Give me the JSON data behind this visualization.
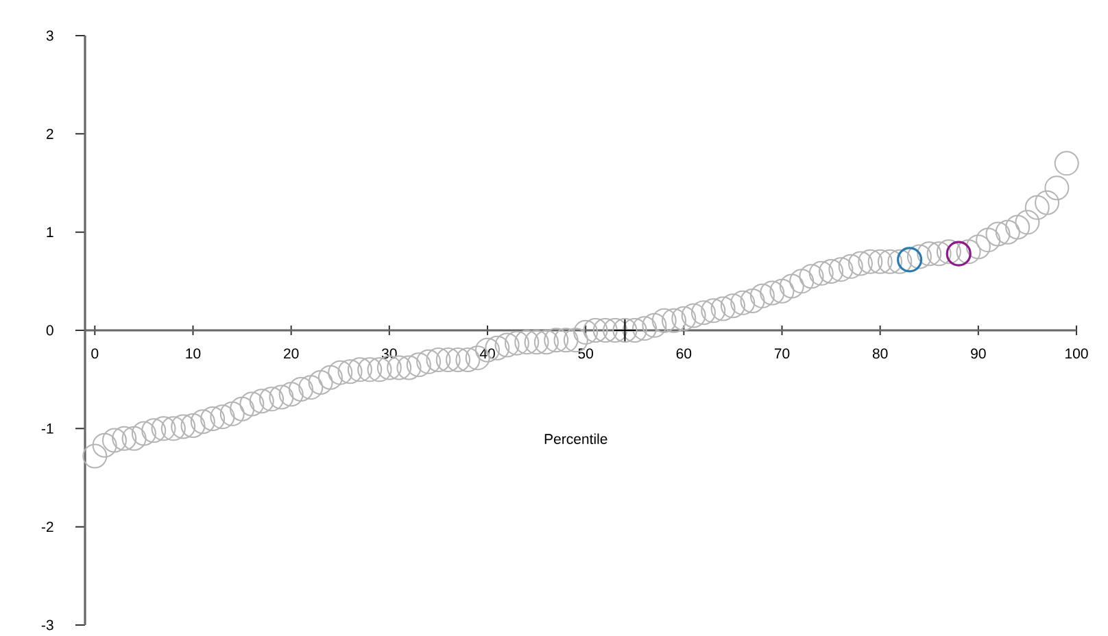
{
  "chart_data": {
    "type": "scatter",
    "xlabel": "Percentile",
    "xlim": [
      -1,
      100
    ],
    "xticks": [
      0,
      10,
      20,
      30,
      40,
      50,
      60,
      70,
      80,
      90,
      100
    ],
    "ylim": [
      -3,
      3
    ],
    "yticks": [
      -3,
      -2,
      -1,
      0,
      1,
      2,
      3
    ],
    "grid": false,
    "series": [
      {
        "color": "#b4b4b4",
        "marker": "circle",
        "x": [
          0,
          1,
          2,
          3,
          4,
          5,
          6,
          7,
          8,
          9,
          10,
          11,
          12,
          13,
          14,
          15,
          16,
          17,
          18,
          19,
          20,
          21,
          22,
          23,
          24,
          25,
          26,
          27,
          28,
          29,
          30,
          31,
          32,
          33,
          34,
          35,
          36,
          37,
          38,
          39,
          40,
          41,
          42,
          43,
          44,
          45,
          46,
          47,
          48,
          49,
          50,
          51,
          52,
          53,
          54,
          55,
          56,
          57,
          58,
          59,
          60,
          61,
          62,
          63,
          64,
          65,
          66,
          67,
          68,
          69,
          70,
          71,
          72,
          73,
          74,
          75,
          76,
          77,
          78,
          79,
          80,
          81,
          82,
          84,
          85,
          86,
          87,
          89,
          90,
          91,
          92,
          93,
          94,
          95,
          96,
          97,
          98,
          99
        ],
        "values": [
          -1.28,
          -1.17,
          -1.12,
          -1.1,
          -1.1,
          -1.05,
          -1.02,
          -1.0,
          -1.0,
          -0.98,
          -0.97,
          -0.93,
          -0.9,
          -0.88,
          -0.85,
          -0.8,
          -0.75,
          -0.72,
          -0.7,
          -0.68,
          -0.65,
          -0.6,
          -0.58,
          -0.53,
          -0.48,
          -0.43,
          -0.42,
          -0.4,
          -0.4,
          -0.4,
          -0.38,
          -0.38,
          -0.38,
          -0.35,
          -0.32,
          -0.3,
          -0.3,
          -0.3,
          -0.3,
          -0.28,
          -0.2,
          -0.18,
          -0.15,
          -0.13,
          -0.12,
          -0.12,
          -0.12,
          -0.1,
          -0.1,
          -0.1,
          -0.02,
          0,
          0,
          0,
          0,
          0,
          0.02,
          0.05,
          0.1,
          0.1,
          0.12,
          0.15,
          0.18,
          0.2,
          0.22,
          0.25,
          0.28,
          0.3,
          0.35,
          0.38,
          0.4,
          0.45,
          0.5,
          0.55,
          0.58,
          0.6,
          0.62,
          0.65,
          0.68,
          0.7,
          0.7,
          0.7,
          0.7,
          0.75,
          0.78,
          0.78,
          0.8,
          0.8,
          0.85,
          0.92,
          0.98,
          1.0,
          1.05,
          1.1,
          1.25,
          1.3,
          1.45,
          1.7
        ]
      },
      {
        "color": "#2a7ab0",
        "marker": "circle",
        "x": [
          83
        ],
        "values": [
          0.72
        ]
      },
      {
        "color": "#8b1a8b",
        "marker": "circle",
        "x": [
          88
        ],
        "values": [
          0.78
        ]
      },
      {
        "color": "#000000",
        "marker": "cross",
        "x": [
          54
        ],
        "values": [
          0
        ]
      }
    ]
  }
}
